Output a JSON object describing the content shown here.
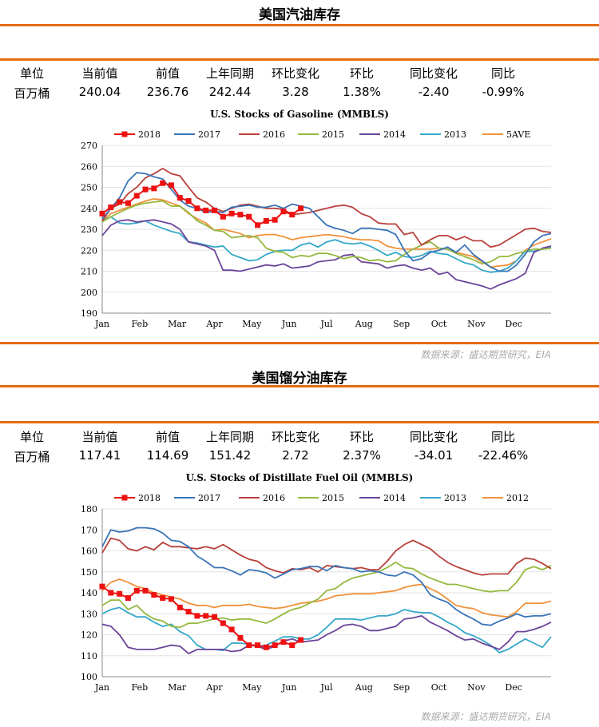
{
  "stats_headers": [
    "单位",
    "当前值",
    "前值",
    "上年同期",
    "环比变化",
    "环比",
    "同比变化",
    "同比"
  ],
  "source": "数据来源：盛达期货研究，EIA",
  "palette": {
    "2018": "#ee1111",
    "2017": "#3a74b8",
    "2016": "#b8403a",
    "2015": "#95b83e",
    "2014": "#6c449a",
    "2013": "#35a8c9",
    "5AVE": "#f0913a",
    "2012": "#f0913a",
    "rule": "#e46c0a"
  },
  "sections": [
    {
      "title": "美国汽油库存",
      "stats_values": [
        "百万桶",
        "240.04",
        "236.76",
        "242.44",
        "3.28",
        "1.38%",
        "-2.40",
        "-0.99%"
      ],
      "chart_data": {
        "type": "line",
        "title": "U.S. Stocks of Gasoline (MMBLS)",
        "ylim": [
          190,
          270
        ],
        "yticks": [
          190,
          200,
          210,
          220,
          230,
          240,
          250,
          260,
          270
        ],
        "xticks": [
          "Jan",
          "Feb",
          "Mar",
          "Apr",
          "May",
          "Jun",
          "Jul",
          "Aug",
          "Sep",
          "Oct",
          "Nov",
          "Dec"
        ],
        "week_range": [
          1,
          53
        ],
        "grid": true,
        "legend_position": "top",
        "series": [
          {
            "name": "2018",
            "markers": true,
            "values": [
              237.5,
              240.5,
              243,
              242.5,
              246,
              249,
              249.5,
              252,
              251,
              245,
              243.5,
              240,
              239,
              239,
              236,
              237.5,
              237,
              236,
              232,
              234,
              234.5,
              238.5,
              237,
              240
            ]
          },
          {
            "name": "2017",
            "values": [
              235,
              240,
              245,
              253,
              257,
              256.5,
              255,
              254,
              249,
              244,
              241,
              240,
              238,
              238.5,
              238,
              240.5,
              241,
              241.5,
              240.5,
              240.5,
              241.5,
              240,
              242,
              241,
              240,
              236,
              232,
              230.5,
              229.5,
              228,
              230.5,
              230.5,
              230,
              229.5,
              227.5,
              220,
              215,
              216,
              219,
              220,
              221.5,
              219,
              222.5,
              218,
              215,
              212,
              210,
              210,
              213,
              218,
              224,
              227,
              228
            ]
          },
          {
            "name": "2016",
            "values": [
              234,
              240,
              242,
              247,
              250,
              254.5,
              256.5,
              259,
              256.5,
              255.5,
              250,
              245,
              243,
              240,
              238.5,
              240,
              241.5,
              242,
              241,
              240,
              240,
              239.5,
              237,
              237.5,
              238,
              239,
              240,
              241,
              241.5,
              240.5,
              237.5,
              236,
              233,
              232.5,
              232.5,
              227.5,
              228.5,
              222.5,
              225,
              227,
              227,
              225,
              226.5,
              224.5,
              224.5,
              221.5,
              222.5,
              225,
              227.5,
              230,
              230.5,
              229,
              228.5
            ]
          },
          {
            "name": "2015",
            "values": [
              233.5,
              236,
              238,
              240,
              241.5,
              242.5,
              243,
              243.5,
              241,
              241,
              238,
              234,
              232,
              229.5,
              229,
              226,
              226.5,
              227,
              226,
              221,
              219.5,
              219,
              216.5,
              217.5,
              217,
              218.5,
              218.5,
              217.5,
              216,
              217,
              216.5,
              215,
              215.5,
              214.5,
              215,
              218,
              220.5,
              222.5,
              224,
              221,
              220.5,
              218.5,
              217,
              215.5,
              213.5,
              214.5,
              217,
              217,
              218.5,
              219.5,
              220.5,
              220.5,
              221
            ]
          },
          {
            "name": "2014",
            "values": [
              227,
              232,
              234,
              234.5,
              233.5,
              234,
              234.5,
              233.5,
              232.5,
              230,
              224,
              223,
              222,
              220,
              210.5,
              210.5,
              210,
              211,
              212,
              213,
              212.5,
              213.5,
              211.5,
              212,
              212.5,
              214.5,
              215,
              215.5,
              217.5,
              218,
              214.5,
              214,
              213.5,
              211.5,
              212.5,
              213,
              211.5,
              210.5,
              211.5,
              208.5,
              209.5,
              206,
              205,
              204,
              203,
              201.5,
              203.5,
              205,
              206.5,
              209,
              219,
              221,
              222
            ]
          },
          {
            "name": "2013",
            "values": [
              234,
              236,
              233,
              232.5,
              233,
              234,
              232,
              230.5,
              229,
              228,
              224,
              223.5,
              222.5,
              221.5,
              222,
              218,
              216.5,
              215,
              215.5,
              218,
              219.5,
              220,
              220,
              222.5,
              223.5,
              221.5,
              224,
              225,
              223.5,
              223,
              223.5,
              222,
              220,
              217.5,
              219,
              217,
              216.5,
              217.5,
              219.5,
              218.5,
              218,
              216,
              214,
              213,
              210.5,
              209.5,
              210,
              211.5,
              215,
              219.5,
              219.5,
              220.5,
              221.5
            ]
          },
          {
            "name": "5AVE",
            "values": [
              234,
              237.5,
              239,
              240.5,
              242,
              243.5,
              244.5,
              244,
              242.5,
              241,
              237.5,
              235,
              233,
              229.5,
              230,
              229,
              228,
              226,
              227,
              227.5,
              227.5,
              226.5,
              225,
              226,
              226.5,
              227,
              227.5,
              227,
              226.5,
              225.5,
              225,
              225,
              224.5,
              222,
              221,
              220.5,
              220.5,
              220.5,
              220.5,
              221,
              220.5,
              219,
              218,
              217,
              214.5,
              212,
              212.5,
              213,
              215,
              220,
              222.5,
              224,
              225.5
            ]
          }
        ]
      }
    },
    {
      "title": "美国馏分油库存",
      "stats_values": [
        "百万桶",
        "117.41",
        "114.69",
        "151.42",
        "2.72",
        "2.37%",
        "-34.01",
        "-22.46%"
      ],
      "chart_data": {
        "type": "line",
        "title": "U.S. Stocks of Distillate Fuel Oil (MMBLS)",
        "ylim": [
          100,
          180
        ],
        "yticks": [
          100,
          110,
          120,
          130,
          140,
          150,
          160,
          170,
          180
        ],
        "xticks": [
          "Jan",
          "Feb",
          "Mar",
          "Apr",
          "May",
          "Jun",
          "Jul",
          "Aug",
          "Sep",
          "Oct",
          "Nov",
          "Dec"
        ],
        "week_range": [
          1,
          53
        ],
        "grid": true,
        "legend_position": "top",
        "series": [
          {
            "name": "2018",
            "markers": true,
            "values": [
              143,
              140,
              139.5,
              137.5,
              141,
              141,
              139,
              137.5,
              137,
              133,
              131,
              129,
              129,
              128.5,
              125.5,
              122.5,
              118.5,
              115,
              115,
              114,
              115,
              116.5,
              115,
              117.5
            ]
          },
          {
            "name": "2017",
            "values": [
              162,
              170,
              169,
              169.5,
              171,
              171,
              170.5,
              168.5,
              165,
              164.5,
              162,
              157.5,
              155,
              152,
              152,
              150.5,
              148.5,
              151,
              150.5,
              149.5,
              147,
              149,
              151,
              151.5,
              152.5,
              152.5,
              150.5,
              153,
              152,
              151.5,
              150,
              150.5,
              150,
              148.5,
              148,
              150,
              148.5,
              145,
              139,
              137,
              135.5,
              132,
              129.5,
              127.5,
              125,
              124.5,
              126.5,
              128,
              130,
              128.5,
              129,
              129,
              130
            ]
          },
          {
            "name": "2016",
            "values": [
              159,
              166,
              165,
              161,
              160,
              162,
              160.5,
              164,
              162,
              162,
              161.5,
              161,
              162,
              161,
              163,
              160.5,
              158,
              156,
              155,
              152,
              150.5,
              149.5,
              151.5,
              151,
              152,
              150,
              153,
              152.5,
              152,
              151.5,
              152,
              151,
              151,
              155,
              160,
              163,
              165,
              163,
              161,
              157.5,
              154.5,
              152.5,
              151,
              149.5,
              148.5,
              149,
              149,
              149,
              154,
              156.5,
              156,
              154,
              151.5
            ]
          },
          {
            "name": "2015",
            "values": [
              134,
              136.5,
              136.5,
              132,
              134,
              130,
              127.5,
              126.5,
              124,
              123.5,
              125.5,
              125.5,
              126.5,
              127.5,
              128,
              127,
              127.5,
              127.5,
              126.5,
              125.5,
              127.5,
              130,
              132,
              133,
              135,
              137,
              141,
              142,
              145,
              147,
              148,
              149,
              150,
              152,
              154.5,
              152,
              151.5,
              149,
              147,
              145.5,
              144,
              144,
              143,
              142,
              141,
              140.5,
              141,
              141,
              145,
              151,
              152.5,
              151,
              153
            ]
          },
          {
            "name": "2014",
            "values": [
              125,
              124,
              120,
              114,
              113,
              113,
              113,
              114,
              115,
              114.5,
              111,
              113,
              113,
              113,
              113,
              112,
              112.5,
              115,
              114.5,
              113,
              114.5,
              117,
              118,
              116.5,
              117,
              117.5,
              120,
              122,
              124.5,
              125,
              124,
              122,
              122,
              123,
              124,
              127.5,
              128,
              129,
              126,
              124,
              122,
              119.5,
              117.5,
              118,
              116,
              114.5,
              113,
              116.5,
              121.5,
              121.5,
              122.5,
              124,
              126
            ]
          },
          {
            "name": "2013",
            "values": [
              130,
              132,
              133,
              130.5,
              128.5,
              128.5,
              126,
              124,
              125,
              121.5,
              119.5,
              115,
              113,
              113,
              112.5,
              116,
              116,
              115.5,
              114.5,
              115,
              117,
              119,
              119,
              118,
              118,
              120,
              123.5,
              127.5,
              127.5,
              127.5,
              127,
              128,
              129,
              129,
              130,
              132,
              131,
              130.5,
              130.5,
              128.5,
              126,
              124,
              121,
              119.5,
              117.5,
              115,
              111.5,
              113,
              115.5,
              118,
              116,
              114,
              119
            ]
          },
          {
            "name": "2012",
            "values": [
              141,
              145,
              146.5,
              145,
              143,
              142,
              140,
              139,
              138,
              137,
              135,
              134,
              134,
              133,
              134,
              134,
              134,
              134.5,
              133.5,
              133,
              132.5,
              133,
              134,
              135,
              135.5,
              136,
              137,
              138.5,
              139,
              139.5,
              139.5,
              139.5,
              140,
              140.5,
              141,
              142.5,
              143.5,
              144,
              142,
              140,
              137,
              134,
              133,
              132.5,
              130.5,
              129.5,
              129,
              128.5,
              131,
              135,
              135,
              135,
              136
            ]
          }
        ]
      }
    }
  ]
}
